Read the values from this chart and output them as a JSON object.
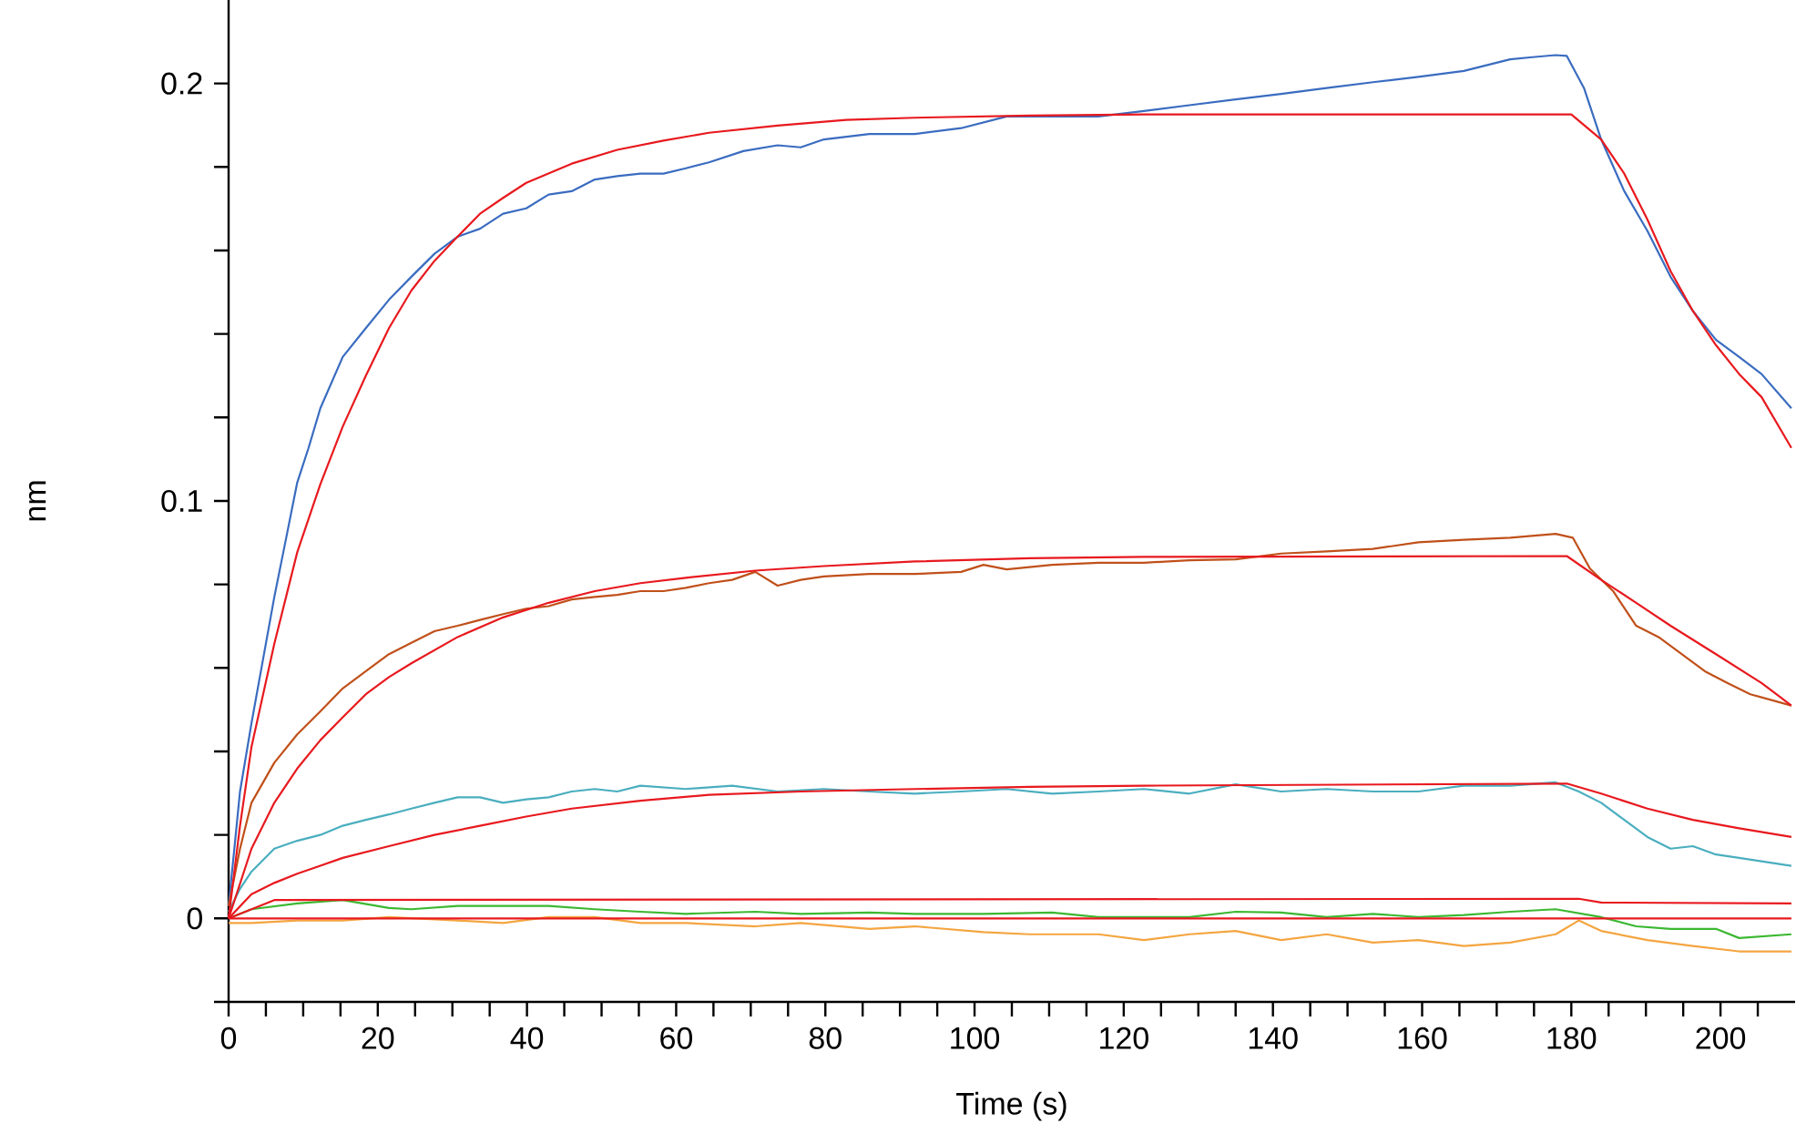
{
  "chart_data": {
    "type": "line",
    "xlabel": "Time (s)",
    "ylabel": "nm",
    "xlim": [
      0,
      210
    ],
    "ylim": [
      -0.02,
      0.22
    ],
    "xticks": [
      0,
      {
        "value": 5,
        "label": null
      },
      {
        "value": 10,
        "label": null
      },
      {
        "value": 15,
        "label": null
      },
      20,
      {
        "value": 25,
        "label": null
      },
      {
        "value": 30,
        "label": null
      },
      {
        "value": 35,
        "label": null
      },
      40,
      {
        "value": 45,
        "label": null
      },
      {
        "value": 50,
        "label": null
      },
      {
        "value": 55,
        "label": null
      },
      60,
      {
        "value": 65,
        "label": null
      },
      {
        "value": 70,
        "label": null
      },
      {
        "value": 75,
        "label": null
      },
      80,
      {
        "value": 85,
        "label": null
      },
      {
        "value": 90,
        "label": null
      },
      {
        "value": 95,
        "label": null
      },
      100,
      {
        "value": 105,
        "label": null
      },
      {
        "value": 110,
        "label": null
      },
      {
        "value": 115,
        "label": null
      },
      120,
      {
        "value": 125,
        "label": null
      },
      {
        "value": 130,
        "label": null
      },
      {
        "value": 135,
        "label": null
      },
      140,
      {
        "value": 145,
        "label": null
      },
      {
        "value": 150,
        "label": null
      },
      {
        "value": 155,
        "label": null
      },
      160,
      {
        "value": 165,
        "label": null
      },
      {
        "value": 170,
        "label": null
      },
      {
        "value": 175,
        "label": null
      },
      180,
      {
        "value": 185,
        "label": null
      },
      {
        "value": 190,
        "label": null
      },
      {
        "value": 195,
        "label": null
      },
      200,
      {
        "value": 205,
        "label": null
      }
    ],
    "yticks": [
      {
        "value": -0.02,
        "label": null
      },
      0,
      {
        "value": 0.02,
        "label": null
      },
      {
        "value": 0.04,
        "label": null
      },
      {
        "value": 0.06,
        "label": null
      },
      {
        "value": 0.08,
        "label": null
      },
      0.1,
      {
        "value": 0.12,
        "label": null
      },
      {
        "value": 0.14,
        "label": null
      },
      {
        "value": 0.16,
        "label": null
      },
      {
        "value": 0.18,
        "label": null
      },
      0.2
    ],
    "grid": false,
    "marker": "none",
    "line_style": "solid",
    "series": [
      {
        "color": "#3a6cc0",
        "x": [
          0,
          0.77,
          1.53,
          3.07,
          4.6,
          6.13,
          7.67,
          9.2,
          10.7,
          12.3,
          15.3,
          18.4,
          21.5,
          24.5,
          27.6,
          30.7,
          33.7,
          36.8,
          39.9,
          42.9,
          46,
          49.1,
          52.1,
          55.2,
          58.3,
          61.3,
          64.4,
          69,
          73.6,
          76.7,
          79.8,
          85.9,
          92,
          98.2,
          104.3,
          110.4,
          116.6,
          122.7,
          128.8,
          135,
          141.1,
          147.2,
          153.4,
          159.5,
          165.6,
          168.7,
          171.8,
          174.8,
          177.9,
          179.4,
          181.7,
          184,
          187.1,
          190.2,
          193.3,
          196.3,
          199.4,
          202.5,
          205.5,
          209.5
        ],
        "values": [
          0.003,
          0.0167,
          0.0304,
          0.0468,
          0.0619,
          0.077,
          0.0907,
          0.1044,
          0.1126,
          0.1222,
          0.1345,
          0.1414,
          0.1482,
          0.1537,
          0.1592,
          0.1633,
          0.1652,
          0.1688,
          0.1701,
          0.1734,
          0.1742,
          0.177,
          0.1778,
          0.1784,
          0.1784,
          0.1797,
          0.1811,
          0.1838,
          0.1852,
          0.1847,
          0.1866,
          0.1879,
          0.1879,
          0.1893,
          0.1921,
          0.1921,
          0.1921,
          0.1934,
          0.1948,
          0.1962,
          0.1975,
          0.1989,
          0.2003,
          0.2016,
          0.203,
          0.2044,
          0.2058,
          0.2063,
          0.2068,
          0.2066,
          0.1989,
          0.1866,
          0.1742,
          0.1647,
          0.1537,
          0.1455,
          0.1386,
          0.1345,
          0.1304,
          0.1222
        ]
      },
      {
        "color": "#c0501a",
        "x": [
          0,
          1.53,
          3.07,
          6.13,
          9.2,
          12.3,
          15.3,
          18.4,
          21.5,
          24.5,
          27.6,
          30.7,
          33.7,
          36.8,
          39.9,
          42.9,
          46,
          49.1,
          52.1,
          55.2,
          58.3,
          61.3,
          64.4,
          67.5,
          70.6,
          73.6,
          76.7,
          79.8,
          85.9,
          92,
          98.2,
          101.2,
          104.3,
          110.4,
          116.6,
          122.7,
          128.8,
          135,
          141.1,
          147.2,
          153.4,
          159.5,
          165.6,
          171.8,
          177.9,
          180.2,
          182.5,
          185.6,
          188.7,
          191.7,
          194.8,
          197.9,
          200.9,
          204,
          209.5
        ],
        "values": [
          0.003,
          0.0167,
          0.0277,
          0.0373,
          0.0441,
          0.0496,
          0.0551,
          0.0592,
          0.0633,
          0.066,
          0.0688,
          0.0701,
          0.0715,
          0.0729,
          0.0742,
          0.0748,
          0.0764,
          0.077,
          0.0775,
          0.0784,
          0.0784,
          0.0792,
          0.0803,
          0.0811,
          0.083,
          0.0797,
          0.0811,
          0.0819,
          0.0825,
          0.0825,
          0.083,
          0.0847,
          0.0836,
          0.0847,
          0.0852,
          0.0852,
          0.0858,
          0.086,
          0.0874,
          0.0879,
          0.0885,
          0.0901,
          0.0907,
          0.0912,
          0.0921,
          0.0912,
          0.0838,
          0.0784,
          0.0701,
          0.0674,
          0.0633,
          0.0592,
          0.0564,
          0.0537,
          0.051
        ]
      },
      {
        "color": "#4aaebf",
        "x": [
          0,
          1.53,
          3.07,
          6.13,
          9.2,
          12.3,
          15.3,
          18.4,
          21.5,
          24.5,
          27.6,
          30.7,
          33.7,
          36.8,
          39.9,
          42.9,
          46,
          49.1,
          52.1,
          55.2,
          61.3,
          67.5,
          73.6,
          79.8,
          85.9,
          92,
          98.2,
          104.3,
          110.4,
          116.6,
          122.7,
          128.8,
          135,
          141.1,
          147.2,
          153.4,
          159.5,
          165.6,
          171.8,
          177.9,
          181,
          184,
          187.1,
          190.2,
          193.3,
          196.3,
          199.4,
          202.5,
          209.5
        ],
        "values": [
          0.0016,
          0.0071,
          0.0112,
          0.0167,
          0.0186,
          0.02,
          0.0222,
          0.0236,
          0.0249,
          0.0263,
          0.0277,
          0.029,
          0.029,
          0.0277,
          0.0285,
          0.029,
          0.0304,
          0.031,
          0.0304,
          0.0318,
          0.031,
          0.0318,
          0.0304,
          0.031,
          0.0304,
          0.0299,
          0.0304,
          0.031,
          0.0299,
          0.0304,
          0.031,
          0.0299,
          0.0321,
          0.0304,
          0.031,
          0.0304,
          0.0304,
          0.0318,
          0.0318,
          0.0326,
          0.0304,
          0.0277,
          0.0236,
          0.0195,
          0.0167,
          0.0173,
          0.0153,
          0.0145,
          0.0126
        ]
      },
      {
        "color": "#3cb832",
        "x": [
          0,
          3.07,
          9.2,
          15.3,
          21.5,
          24.5,
          30.7,
          36.8,
          42.9,
          49.1,
          55.2,
          61.3,
          70.6,
          76.7,
          85.9,
          92,
          101.2,
          110.4,
          116.6,
          122.7,
          128.8,
          135,
          141.1,
          147.2,
          153.4,
          159.5,
          165.6,
          171.8,
          177.9,
          184,
          188.7,
          193.3,
          199.4,
          202.5,
          209.5
        ],
        "values": [
          0,
          0.0022,
          0.0036,
          0.0044,
          0.0025,
          0.0022,
          0.003,
          0.003,
          0.003,
          0.0022,
          0.0016,
          0.0011,
          0.0016,
          0.0011,
          0.0014,
          0.0011,
          0.0011,
          0.0014,
          0.0003,
          0.0003,
          0.0003,
          0.0016,
          0.0014,
          0.0003,
          0.0011,
          0.0003,
          0.0008,
          0.0016,
          0.0022,
          0.0003,
          -0.0019,
          -0.0025,
          -0.0025,
          -0.0047,
          -0.0038
        ]
      },
      {
        "color": "#f4a540",
        "x": [
          0,
          3.07,
          9.2,
          15.3,
          21.5,
          30.7,
          36.8,
          42.9,
          49.1,
          55.2,
          61.3,
          70.6,
          76.7,
          85.9,
          92,
          101.2,
          107.4,
          116.6,
          122.7,
          128.8,
          135,
          141.1,
          147.2,
          153.4,
          159.5,
          165.6,
          171.8,
          177.9,
          181,
          184,
          190.2,
          196.3,
          202.5,
          209.5
        ],
        "values": [
          -0.0011,
          -0.0011,
          -0.0005,
          -0.0005,
          0.0003,
          -0.0005,
          -0.0011,
          0.0003,
          0.0003,
          -0.0011,
          -0.0011,
          -0.0019,
          -0.0011,
          -0.0025,
          -0.0019,
          -0.0033,
          -0.0038,
          -0.0038,
          -0.0052,
          -0.0038,
          -0.003,
          -0.0052,
          -0.0038,
          -0.0058,
          -0.0052,
          -0.0066,
          -0.0058,
          -0.0038,
          -0.0005,
          -0.003,
          -0.0052,
          -0.0066,
          -0.0079,
          -0.0079
        ]
      },
      {
        "color": "#e8191e",
        "x": [
          0,
          1.53,
          3.07,
          6.13,
          9.2,
          12.3,
          15.3,
          18.4,
          21.5,
          24.5,
          27.6,
          30.7,
          33.7,
          36.8,
          39.9,
          46,
          52.1,
          58.3,
          64.4,
          73.6,
          82.8,
          92,
          107.4,
          122.7,
          180,
          184,
          187.1,
          190.2,
          193.3,
          196.3,
          199.4,
          202.5,
          205.5,
          209.5
        ],
        "values": [
          0,
          0.0222,
          0.0411,
          0.0658,
          0.0877,
          0.104,
          0.1178,
          0.13,
          0.1414,
          0.1504,
          0.1575,
          0.1633,
          0.1688,
          0.1726,
          0.1762,
          0.1808,
          0.1841,
          0.1863,
          0.1882,
          0.1899,
          0.1913,
          0.1918,
          0.1923,
          0.1926,
          0.1926,
          0.1866,
          0.1784,
          0.1674,
          0.1551,
          0.1455,
          0.1373,
          0.1304,
          0.1249,
          0.1127
        ]
      },
      {
        "color": "#e8191e",
        "x": [
          0,
          3.07,
          6.13,
          9.2,
          12.3,
          15.3,
          18.4,
          21.5,
          24.5,
          30.7,
          36.8,
          42.9,
          49.1,
          55.2,
          61.3,
          70.6,
          79.8,
          92,
          107.4,
          122.7,
          179.4,
          184,
          188.7,
          193.3,
          199.4,
          205.5,
          209.5
        ],
        "values": [
          0,
          0.0167,
          0.0277,
          0.0359,
          0.0427,
          0.0482,
          0.0537,
          0.0578,
          0.0611,
          0.0674,
          0.0721,
          0.0756,
          0.0784,
          0.0803,
          0.0816,
          0.0833,
          0.0844,
          0.0855,
          0.0863,
          0.0866,
          0.0868,
          0.0811,
          0.0756,
          0.0701,
          0.0633,
          0.0564,
          0.051
        ]
      },
      {
        "color": "#e8191e",
        "x": [
          0,
          3.07,
          6.13,
          9.2,
          12.3,
          15.3,
          21.5,
          27.6,
          33.7,
          39.9,
          46,
          55.2,
          64.4,
          76.7,
          92,
          107.4,
          122.7,
          179.4,
          184,
          190.2,
          196.3,
          202.5,
          209.5
        ],
        "values": [
          0,
          0.0058,
          0.0085,
          0.0107,
          0.0126,
          0.0145,
          0.0173,
          0.02,
          0.0222,
          0.0244,
          0.0263,
          0.0282,
          0.0296,
          0.0304,
          0.031,
          0.0315,
          0.0318,
          0.0323,
          0.0299,
          0.0263,
          0.0236,
          0.0216,
          0.0195
        ]
      },
      {
        "color": "#e8191e",
        "x": [
          0,
          6.13,
          181,
          184,
          209.5
        ],
        "values": [
          0,
          0.0044,
          0.0047,
          0.0038,
          0.0036
        ]
      },
      {
        "color": "#e8191e",
        "x": [
          0,
          180,
          209.5
        ],
        "values": [
          0,
          0,
          0
        ]
      }
    ]
  }
}
